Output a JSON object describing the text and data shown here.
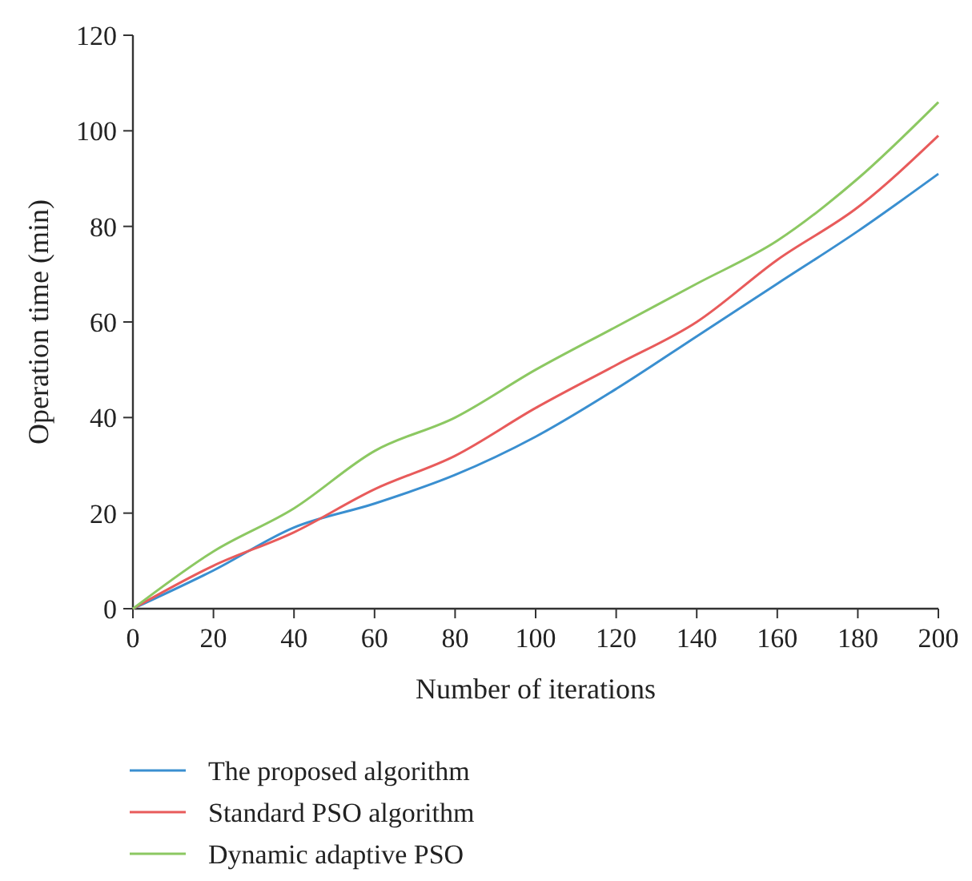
{
  "chart_data": {
    "type": "line",
    "xlabel": "Number of iterations",
    "ylabel": "Operation time (min)",
    "x": [
      0,
      20,
      40,
      60,
      80,
      100,
      120,
      140,
      160,
      180,
      200
    ],
    "xlim": [
      0,
      200
    ],
    "xticks": [
      0,
      20,
      40,
      60,
      80,
      100,
      120,
      140,
      160,
      180,
      200
    ],
    "ylim": [
      0,
      120
    ],
    "yticks": [
      0,
      20,
      40,
      60,
      80,
      100,
      120
    ],
    "grid": false,
    "legend": "bottom",
    "marker": "none",
    "line_style": "solid",
    "series": [
      {
        "name": "The proposed algorithm",
        "color": "#3a8fd0",
        "values": [
          0,
          8,
          17,
          22,
          28,
          36,
          46,
          57,
          68,
          79,
          91
        ]
      },
      {
        "name": "Standard PSO algorithm",
        "color": "#e85b5b",
        "values": [
          0,
          9,
          16,
          25,
          32,
          42,
          51,
          60,
          73,
          84,
          99
        ]
      },
      {
        "name": "Dynamic adaptive PSO",
        "color": "#8cc862",
        "values": [
          0,
          12,
          21,
          33,
          40,
          50,
          59,
          68,
          77,
          90,
          106
        ]
      }
    ]
  }
}
